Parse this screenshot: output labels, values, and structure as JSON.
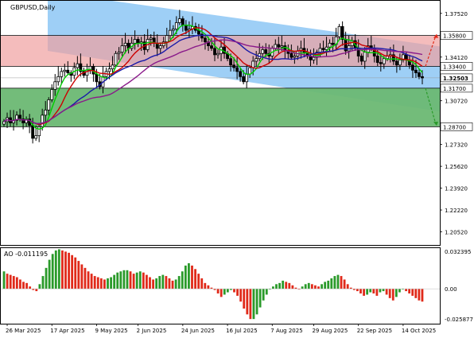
{
  "window": {
    "title": "GBPUSD,Daily"
  },
  "colors": {
    "background": "#ffffff",
    "channel_fill": "#99ccf5",
    "resistance_zone_fill": "#f0a0a0",
    "support_zone_fill": "#6cb873",
    "candle": "#000000",
    "ma_fast": "#00cc00",
    "ma_mid": "#cc0000",
    "ma_slow": "#1a1aa8",
    "ma_trend": "#8a1a8a",
    "ao_up": "#2a9a2a",
    "ao_down": "#e02a1a",
    "arrow_up": "#e02a1a",
    "arrow_down": "#2a9a2a",
    "price_label_bg": "#ffffff",
    "price_label_current_bg": "#ffffff"
  },
  "chart_data": [
    {
      "type": "candlestick",
      "title": "GBPUSD,Daily",
      "ylim": [
        1.195,
        1.385
      ],
      "y_ticks": [
        "1.37520",
        "1.35800",
        "1.34120",
        "1.32503",
        "1.31700",
        "1.30720",
        "1.28700",
        "1.27320",
        "1.25620",
        "1.23920",
        "1.22220",
        "1.20520"
      ],
      "x_ticks": [
        "26 Mar 2025",
        "17 Apr 2025",
        "9 May 2025",
        "2 Jun 2025",
        "24 Jun 2025",
        "16 Jul 2025",
        "7 Aug 2025",
        "29 Aug 2025",
        "22 Sep 2025",
        "14 Oct 2025"
      ],
      "price_levels": [
        {
          "label": "1.35800",
          "value": 1.358,
          "role": "resistance-top"
        },
        {
          "label": "1.33400",
          "value": 1.334,
          "role": "resistance-bottom"
        },
        {
          "label": "1.32503",
          "value": 1.32503,
          "role": "current"
        },
        {
          "label": "1.31700",
          "value": 1.317,
          "role": "support-top"
        },
        {
          "label": "1.28700",
          "value": 1.287,
          "role": "support-bottom"
        }
      ],
      "channel": {
        "upper": [
          [
            0,
            1.392
          ],
          [
            148,
            1.352
          ]
        ],
        "lower": [
          [
            0,
            1.346
          ],
          [
            148,
            1.305
          ]
        ]
      },
      "close": [
        1.291,
        1.294,
        1.29,
        1.292,
        1.296,
        1.293,
        1.29,
        1.293,
        1.288,
        1.278,
        1.28,
        1.287,
        1.296,
        1.3,
        1.308,
        1.316,
        1.322,
        1.326,
        1.33,
        1.331,
        1.329,
        1.327,
        1.333,
        1.336,
        1.33,
        1.327,
        1.331,
        1.334,
        1.328,
        1.322,
        1.318,
        1.326,
        1.33,
        1.332,
        1.335,
        1.344,
        1.345,
        1.35,
        1.352,
        1.348,
        1.352,
        1.355,
        1.352,
        1.353,
        1.347,
        1.355,
        1.356,
        1.352,
        1.348,
        1.35,
        1.353,
        1.358,
        1.362,
        1.363,
        1.368,
        1.371,
        1.366,
        1.362,
        1.363,
        1.365,
        1.362,
        1.359,
        1.356,
        1.353,
        1.35,
        1.348,
        1.343,
        1.344,
        1.349,
        1.344,
        1.34,
        1.335,
        1.333,
        1.33,
        1.326,
        1.322,
        1.328,
        1.333,
        1.338,
        1.34,
        1.344,
        1.347,
        1.344,
        1.342,
        1.348,
        1.351,
        1.349,
        1.35,
        1.346,
        1.344,
        1.341,
        1.342,
        1.346,
        1.348,
        1.345,
        1.342,
        1.339,
        1.341,
        1.345,
        1.348,
        1.347,
        1.349,
        1.352,
        1.351,
        1.357,
        1.365,
        1.355,
        1.346,
        1.35,
        1.354,
        1.348,
        1.342,
        1.338,
        1.345,
        1.35,
        1.348,
        1.342,
        1.337,
        1.336,
        1.34,
        1.342,
        1.343,
        1.338,
        1.335,
        1.339,
        1.343,
        1.339,
        1.335,
        1.331,
        1.329,
        1.326,
        1.325
      ],
      "moving_averages": [
        {
          "role": "fast",
          "color_key": "ma_fast",
          "period": 5
        },
        {
          "role": "mid",
          "color_key": "ma_mid",
          "period": 10
        },
        {
          "role": "slow",
          "color_key": "ma_slow",
          "period": 21
        },
        {
          "role": "trend",
          "color_key": "ma_trend",
          "period": 34
        }
      ],
      "arrows": [
        {
          "direction": "up",
          "from": 1.334,
          "to": 1.358,
          "color_key": "arrow_up"
        },
        {
          "direction": "down",
          "from": 1.317,
          "to": 1.289,
          "color_key": "arrow_down"
        }
      ]
    },
    {
      "type": "histogram",
      "title": "AO -0.011195",
      "ylim": [
        -0.03,
        0.035
      ],
      "y_ticks": [
        "0.032395",
        "0.00",
        "-0.025877"
      ],
      "values": [
        0.015,
        0.013,
        0.012,
        0.011,
        0.01,
        0.008,
        0.006,
        0.005,
        0.002,
        -0.001,
        -0.002,
        0.004,
        0.011,
        0.018,
        0.025,
        0.03,
        0.033,
        0.034,
        0.033,
        0.032,
        0.031,
        0.029,
        0.027,
        0.024,
        0.021,
        0.018,
        0.015,
        0.013,
        0.011,
        0.01,
        0.009,
        0.008,
        0.009,
        0.01,
        0.012,
        0.014,
        0.015,
        0.016,
        0.016,
        0.015,
        0.013,
        0.014,
        0.015,
        0.014,
        0.012,
        0.01,
        0.008,
        0.009,
        0.011,
        0.012,
        0.011,
        0.009,
        0.007,
        0.008,
        0.011,
        0.015,
        0.02,
        0.022,
        0.02,
        0.017,
        0.013,
        0.009,
        0.005,
        0.003,
        0.001,
        -0.001,
        -0.004,
        -0.007,
        -0.005,
        -0.003,
        -0.001,
        -0.003,
        -0.006,
        -0.011,
        -0.017,
        -0.022,
        -0.026,
        -0.026,
        -0.022,
        -0.016,
        -0.01,
        -0.005,
        0.0,
        0.002,
        0.004,
        0.005,
        0.007,
        0.006,
        0.005,
        0.003,
        0.001,
        0.0,
        0.002,
        0.004,
        0.005,
        0.004,
        0.003,
        0.002,
        0.004,
        0.006,
        0.007,
        0.009,
        0.011,
        0.012,
        0.011,
        0.008,
        0.004,
        0.001,
        -0.001,
        -0.002,
        -0.004,
        -0.006,
        -0.005,
        -0.003,
        -0.004,
        -0.006,
        -0.003,
        -0.002,
        -0.005,
        -0.008,
        -0.01,
        -0.007,
        -0.003,
        0.0,
        -0.002,
        -0.004,
        -0.006,
        -0.008,
        -0.01,
        -0.011
      ]
    }
  ]
}
